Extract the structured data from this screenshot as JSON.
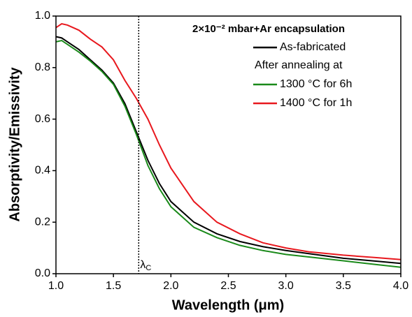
{
  "chart_data": {
    "type": "line",
    "xlabel": "Wavelength (μm)",
    "ylabel": "Absorptivity/Emissivity",
    "legend_title": "2×10⁻² mbar+Ar encapsulation",
    "legend_note": "After annealing at",
    "x": [
      1.0,
      1.05,
      1.1,
      1.2,
      1.3,
      1.4,
      1.5,
      1.6,
      1.7,
      1.8,
      1.9,
      2.0,
      2.2,
      2.4,
      2.6,
      2.8,
      3.0,
      3.2,
      3.5,
      3.8,
      4.0
    ],
    "series": [
      {
        "name": "As-fabricated",
        "color": "#000000",
        "values": [
          0.92,
          0.915,
          0.9,
          0.87,
          0.83,
          0.79,
          0.74,
          0.66,
          0.55,
          0.44,
          0.35,
          0.28,
          0.2,
          0.155,
          0.125,
          0.105,
          0.09,
          0.078,
          0.06,
          0.048,
          0.04
        ]
      },
      {
        "name": "1300 °C for 6h",
        "color": "#1a8a1a",
        "values": [
          0.9,
          0.905,
          0.89,
          0.86,
          0.825,
          0.785,
          0.735,
          0.65,
          0.54,
          0.42,
          0.33,
          0.26,
          0.18,
          0.14,
          0.11,
          0.09,
          0.075,
          0.065,
          0.05,
          0.035,
          0.025
        ]
      },
      {
        "name": "1400 °C for 1h",
        "color": "#e8181e",
        "values": [
          0.955,
          0.97,
          0.965,
          0.945,
          0.91,
          0.88,
          0.83,
          0.75,
          0.68,
          0.6,
          0.5,
          0.41,
          0.28,
          0.2,
          0.155,
          0.12,
          0.1,
          0.085,
          0.072,
          0.062,
          0.055
        ]
      }
    ],
    "cutoff": {
      "x": 1.72,
      "label": "λ",
      "sub": "C"
    },
    "xlim": [
      1.0,
      4.0
    ],
    "xticks": [
      {
        "value": 1.0,
        "label": "1.0"
      },
      {
        "value": 1.5,
        "label": "1.5"
      },
      {
        "value": 2.0,
        "label": "2.0"
      },
      {
        "value": 2.5,
        "label": "2.5"
      },
      {
        "value": 3.0,
        "label": "3.0"
      },
      {
        "value": 3.5,
        "label": "3.5"
      },
      {
        "value": 4.0,
        "label": "4.0"
      }
    ],
    "ylim": [
      0.0,
      1.0
    ],
    "yticks": [
      {
        "value": 0.0,
        "label": "0.0"
      },
      {
        "value": 0.2,
        "label": "0.2"
      },
      {
        "value": 0.4,
        "label": "0.4"
      },
      {
        "value": 0.6,
        "label": "0.6"
      },
      {
        "value": 0.8,
        "label": "0.8"
      },
      {
        "value": 1.0,
        "label": "1.0"
      }
    ]
  }
}
